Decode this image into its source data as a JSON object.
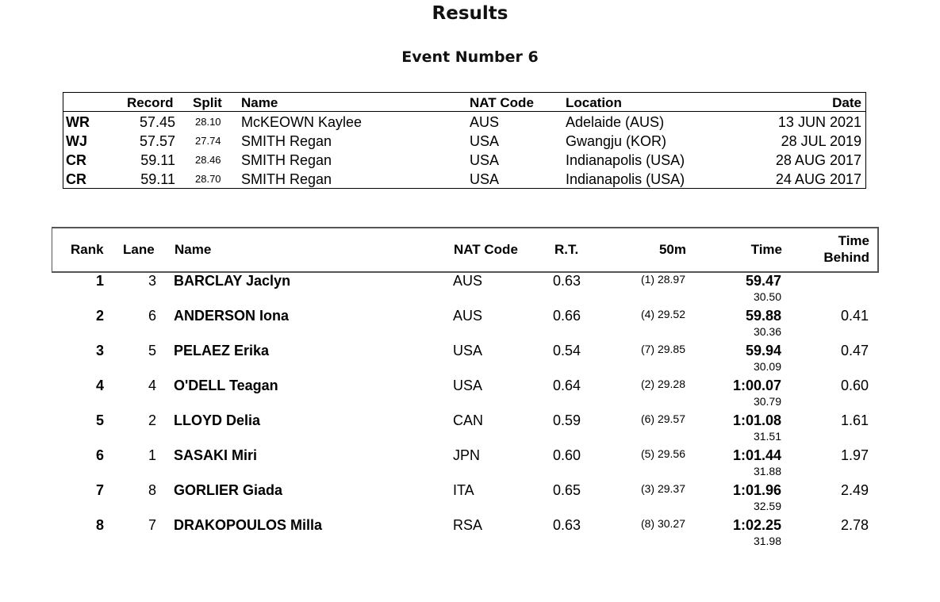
{
  "header": {
    "title": "Results",
    "event": "Event Number 6"
  },
  "records": {
    "columns": {
      "code": "",
      "record": "Record",
      "split": "Split",
      "name": "Name",
      "nat": "NAT Code",
      "location": "Location",
      "date": "Date"
    },
    "rows": [
      {
        "code": "WR",
        "record": "57.45",
        "split": "28.10",
        "name": "McKEOWN Kaylee",
        "nat": "AUS",
        "location": "Adelaide (AUS)",
        "date": "13 JUN 2021"
      },
      {
        "code": "WJ",
        "record": "57.57",
        "split": "27.74",
        "name": "SMITH Regan",
        "nat": "USA",
        "location": "Gwangju (KOR)",
        "date": "28 JUL 2019"
      },
      {
        "code": "CR",
        "record": "59.11",
        "split": "28.46",
        "name": "SMITH Regan",
        "nat": "USA",
        "location": "Indianapolis (USA)",
        "date": "28 AUG 2017"
      },
      {
        "code": "CR",
        "record": "59.11",
        "split": "28.70",
        "name": "SMITH Regan",
        "nat": "USA",
        "location": "Indianapolis (USA)",
        "date": "24 AUG 2017"
      }
    ]
  },
  "results": {
    "columns": {
      "rank": "Rank",
      "lane": "Lane",
      "name": "Name",
      "nat": "NAT Code",
      "rt": "R.T.",
      "split50": "50m",
      "time": "Time",
      "behind_line1": "Time",
      "behind_line2": "Behind"
    },
    "rows": [
      {
        "rank": "1",
        "lane": "3",
        "name": "BARCLAY Jaclyn",
        "nat": "AUS",
        "rt": "0.63",
        "split50": "(1) 28.97",
        "time": "59.47",
        "second50": "30.50",
        "behind": ""
      },
      {
        "rank": "2",
        "lane": "6",
        "name": "ANDERSON Iona",
        "nat": "AUS",
        "rt": "0.66",
        "split50": "(4) 29.52",
        "time": "59.88",
        "second50": "30.36",
        "behind": "0.41"
      },
      {
        "rank": "3",
        "lane": "5",
        "name": "PELAEZ Erika",
        "nat": "USA",
        "rt": "0.54",
        "split50": "(7) 29.85",
        "time": "59.94",
        "second50": "30.09",
        "behind": "0.47"
      },
      {
        "rank": "4",
        "lane": "4",
        "name": "O'DELL Teagan",
        "nat": "USA",
        "rt": "0.64",
        "split50": "(2) 29.28",
        "time": "1:00.07",
        "second50": "30.79",
        "behind": "0.60"
      },
      {
        "rank": "5",
        "lane": "2",
        "name": "LLOYD Delia",
        "nat": "CAN",
        "rt": "0.59",
        "split50": "(6) 29.57",
        "time": "1:01.08",
        "second50": "31.51",
        "behind": "1.61"
      },
      {
        "rank": "6",
        "lane": "1",
        "name": "SASAKI Miri",
        "nat": "JPN",
        "rt": "0.60",
        "split50": "(5) 29.56",
        "time": "1:01.44",
        "second50": "31.88",
        "behind": "1.97"
      },
      {
        "rank": "7",
        "lane": "8",
        "name": "GORLIER Giada",
        "nat": "ITA",
        "rt": "0.65",
        "split50": "(3) 29.37",
        "time": "1:01.96",
        "second50": "32.59",
        "behind": "2.49"
      },
      {
        "rank": "8",
        "lane": "7",
        "name": "DRAKOPOULOS Milla",
        "nat": "RSA",
        "rt": "0.63",
        "split50": "(8) 30.27",
        "time": "1:02.25",
        "second50": "31.98",
        "behind": "2.78"
      }
    ]
  }
}
